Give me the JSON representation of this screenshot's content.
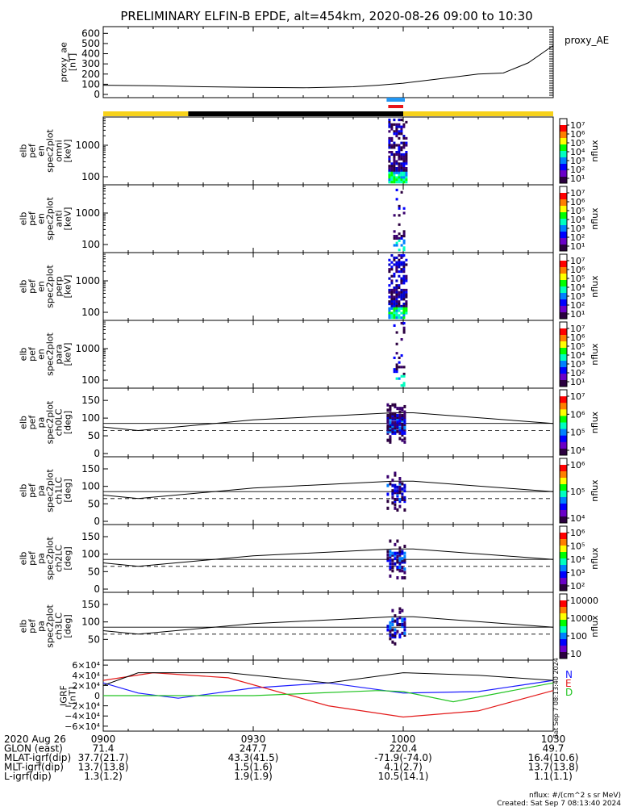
{
  "title": "PRELIMINARY ELFIN-B EPDE, alt=454km, 2020-08-26 09:00 to 10:30",
  "colors": {
    "yellow_bar": "#f7d21b",
    "black_bar": "#000000",
    "blue_bar": "#2196f3",
    "red_bar": "#e8141a",
    "bx": "#1a1aff",
    "by": "#e31a1a",
    "bz": "#22c422",
    "btot": "#000000"
  },
  "panels": {
    "proxy": {
      "ylabel": [
        "proxy_ae",
        "[nT]"
      ],
      "legend": "proxy_AE",
      "ticks": [
        "600",
        "500",
        "400",
        "300",
        "200",
        "100",
        "0"
      ]
    },
    "spec": [
      {
        "ylabel": [
          "elb",
          "pef",
          "en",
          "spec2plot",
          "omni",
          "[keV]"
        ],
        "ticks": [
          "1000",
          "100"
        ],
        "cb_label": "nflux",
        "cb_ticks": [
          "10⁷",
          "10⁶",
          "10⁵",
          "10⁴",
          "10³",
          "10²",
          "10¹"
        ]
      },
      {
        "ylabel": [
          "elb",
          "pef",
          "en",
          "spec2plot",
          "anti",
          "[keV]"
        ],
        "ticks": [
          "1000",
          "100"
        ],
        "cb_label": "nflux",
        "cb_ticks": [
          "10⁷",
          "10⁶",
          "10⁵",
          "10⁴",
          "10³",
          "10²",
          "10¹"
        ]
      },
      {
        "ylabel": [
          "elb",
          "pef",
          "en",
          "spec2plot",
          "perp",
          "[keV]"
        ],
        "ticks": [
          "1000",
          "100"
        ],
        "cb_label": "nflux",
        "cb_ticks": [
          "10⁷",
          "10⁶",
          "10⁵",
          "10⁴",
          "10³",
          "10²",
          "10¹"
        ]
      },
      {
        "ylabel": [
          "elb",
          "pef",
          "en",
          "spec2plot",
          "para",
          "[keV]"
        ],
        "ticks": [
          "1000",
          "100"
        ],
        "cb_label": "nflux",
        "cb_ticks": [
          "10⁷",
          "10⁶",
          "10⁵",
          "10⁴",
          "10³",
          "10²",
          "10¹"
        ]
      }
    ],
    "pa": [
      {
        "ylabel": [
          "elb",
          "pef",
          "pa",
          "spec2plot",
          "ch0LC",
          "[deg]"
        ],
        "ticks": [
          "150",
          "100",
          "50",
          "0"
        ],
        "cb_label": "nflux",
        "cb_ticks": [
          "10⁷",
          "10⁶",
          "10⁵",
          "10⁴"
        ]
      },
      {
        "ylabel": [
          "elb",
          "pef",
          "pa",
          "spec2plot",
          "ch1LC",
          "[deg]"
        ],
        "ticks": [
          "150",
          "100",
          "50",
          "0"
        ],
        "cb_label": "nflux",
        "cb_ticks": [
          "10⁶",
          "10⁵",
          "10⁴"
        ]
      },
      {
        "ylabel": [
          "elb",
          "pef",
          "pa",
          "spec2plot",
          "ch2LC",
          "[deg]"
        ],
        "ticks": [
          "150",
          "100",
          "50",
          "0"
        ],
        "cb_label": "nflux",
        "cb_ticks": [
          "10⁶",
          "10⁵",
          "10⁴",
          "10³",
          "10²"
        ]
      },
      {
        "ylabel": [
          "elb",
          "pef",
          "pa",
          "spec2plot",
          "ch3LC",
          "[deg]"
        ],
        "ticks": [
          "150",
          "100",
          "50"
        ],
        "cb_label": "nflux",
        "cb_ticks": [
          "10000",
          "1000",
          "100",
          "10"
        ]
      }
    ],
    "igrf": {
      "ylabel": [
        "IGRF",
        "[nT]"
      ],
      "ticks": [
        "6×10⁴",
        "4×10⁴",
        "2×10⁴",
        "0",
        "−2×10⁴",
        "−4×10⁴",
        "−6×10⁴"
      ],
      "legend": [
        "N",
        "E",
        "D"
      ],
      "stamp": "Sat Sep  7 08:13:40 2024"
    }
  },
  "footer": {
    "rows": [
      {
        "label": "2020 Aug 26",
        "vals": [
          "0900",
          "0930",
          "1000",
          "1030"
        ]
      },
      {
        "label": "GLON (east)",
        "vals": [
          "71.4",
          "247.7",
          "220.4",
          "49.7"
        ]
      },
      {
        "label": "MLAT-igrf(dip)",
        "vals": [
          "37.7(21.7)",
          "43.3(41.5)",
          "-71.9(-74.0)",
          "16.4(10.6)"
        ]
      },
      {
        "label": "MLT-igrf(dip)",
        "vals": [
          "13.7(13.8)",
          "1.5(1.6)",
          "4.1(2.7)",
          "13.7(13.8)"
        ]
      },
      {
        "label": "L-igrf(dip)",
        "vals": [
          "1.3(1.2)",
          "1.9(1.9)",
          "10.5(14.1)",
          "1.1(1.1)"
        ]
      }
    ],
    "nflux_units": "nflux: #/(cm^2 s sr MeV)",
    "created": "Created: Sat Sep  7 08:13:40 2024"
  },
  "chart_data": {
    "type": "line",
    "title": "PRELIMINARY ELFIN-B EPDE, alt=454km, 2020-08-26 09:00 to 10:30",
    "xlabel": "2020 Aug 26",
    "x_ticks": [
      "0900",
      "0930",
      "1000",
      "1030"
    ],
    "series": [
      {
        "name": "proxy_AE",
        "x": [
          "09:00",
          "09:10",
          "09:20",
          "09:30",
          "09:40",
          "09:50",
          "09:55",
          "10:00",
          "10:10",
          "10:15",
          "10:20",
          "10:25",
          "10:30"
        ],
        "values": [
          90,
          85,
          75,
          70,
          65,
          75,
          90,
          110,
          170,
          200,
          210,
          310,
          480
        ],
        "ylim": [
          0,
          650
        ]
      },
      {
        "name": "N",
        "x": [
          "09:00",
          "09:07",
          "09:15",
          "09:30",
          "09:45",
          "10:00",
          "10:15",
          "10:30"
        ],
        "values": [
          25000,
          5000,
          -5000,
          15000,
          25000,
          5000,
          8000,
          30000
        ],
        "ylim": [
          -65000,
          65000
        ]
      },
      {
        "name": "E",
        "x": [
          "09:00",
          "09:10",
          "09:25",
          "09:45",
          "10:00",
          "10:15",
          "10:30"
        ],
        "values": [
          30000,
          45000,
          35000,
          -20000,
          -42000,
          -30000,
          10000
        ],
        "ylim": [
          -65000,
          65000
        ]
      },
      {
        "name": "D",
        "x": [
          "09:00",
          "09:30",
          "09:55",
          "10:00",
          "10:10",
          "10:30"
        ],
        "values": [
          0,
          0,
          10000,
          8000,
          -12000,
          25000
        ],
        "ylim": [
          -65000,
          65000
        ]
      }
    ],
    "panels": [
      {
        "name": "omni",
        "type": "heatmap",
        "ylabel": "[keV]",
        "active_window": [
          "09:57",
          "10:00"
        ],
        "ylim_keV": [
          60,
          6000
        ]
      },
      {
        "name": "anti",
        "type": "heatmap",
        "ylabel": "[keV]",
        "active_window": [
          "09:58",
          "10:00"
        ],
        "ylim_keV": [
          60,
          6000
        ]
      },
      {
        "name": "perp",
        "type": "heatmap",
        "ylabel": "[keV]",
        "active_window": [
          "09:57",
          "10:00"
        ],
        "ylim_keV": [
          60,
          6000
        ]
      },
      {
        "name": "para",
        "type": "heatmap",
        "ylabel": "[keV]",
        "active_window": [
          "09:58",
          "10:00"
        ],
        "ylim_keV": [
          60,
          6000
        ]
      },
      {
        "name": "ch0LC",
        "type": "heatmap",
        "ylabel": "[deg]",
        "ylim": [
          0,
          180
        ],
        "loss_cone": {
          "x": [
            "09:00",
            "09:07",
            "09:30",
            "09:58",
            "10:02",
            "10:30"
          ],
          "values": [
            75,
            65,
            95,
            115,
            115,
            85
          ]
        },
        "anti_loss_cone": 65
      },
      {
        "name": "ch1LC",
        "type": "heatmap",
        "ylabel": "[deg]",
        "ylim": [
          0,
          180
        ],
        "loss_cone": {
          "x": [
            "09:00",
            "09:07",
            "09:30",
            "09:58",
            "10:02",
            "10:30"
          ],
          "values": [
            75,
            65,
            95,
            115,
            115,
            85
          ]
        },
        "anti_loss_cone": 65
      },
      {
        "name": "ch2LC",
        "type": "heatmap",
        "ylabel": "[deg]",
        "ylim": [
          0,
          180
        ],
        "loss_cone": {
          "x": [
            "09:00",
            "09:07",
            "09:30",
            "09:58",
            "10:02",
            "10:30"
          ],
          "values": [
            75,
            65,
            95,
            115,
            115,
            85
          ]
        },
        "anti_loss_cone": 65
      },
      {
        "name": "ch3LC",
        "type": "heatmap",
        "ylabel": "[deg]",
        "ylim": [
          0,
          180
        ],
        "loss_cone": {
          "x": [
            "09:00",
            "09:07",
            "09:30",
            "09:58",
            "10:02",
            "10:30"
          ],
          "values": [
            75,
            65,
            95,
            115,
            115,
            85
          ]
        },
        "anti_loss_cone": 65
      }
    ],
    "status_bar": {
      "yellow": [
        [
          "09:00",
          "09:17"
        ],
        [
          "10:00",
          "10:30"
        ]
      ],
      "black": [
        [
          "09:17",
          "10:00"
        ]
      ]
    },
    "science_zone": [
      "09:57",
      "10:00"
    ]
  }
}
